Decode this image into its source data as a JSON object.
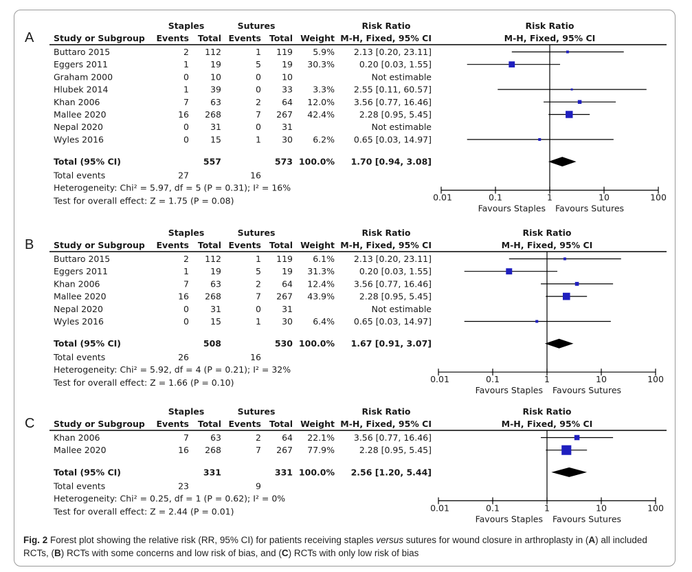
{
  "figure": {
    "caption_label": "Fig. 2",
    "caption_text_1": " Forest plot showing the relative risk (RR, 95% CI) for patients receiving staples ",
    "caption_versus": "versus",
    "caption_text_2": " sutures for wound closure in arthroplasty in (",
    "caption_a": "A",
    "caption_text_3": ") all included RCTs, (",
    "caption_b": "B",
    "caption_text_4": ") RCTs with some concerns and low risk of bias, and (",
    "caption_c": "C",
    "caption_text_5": ") RCTs with only low risk of bias"
  },
  "headers": {
    "study": "Study or Subgroup",
    "staples": "Staples",
    "sutures": "Sutures",
    "events": "Events",
    "total": "Total",
    "weight": "Weight",
    "risk_ratio": "Risk Ratio",
    "method": "M-H, Fixed, 95% CI",
    "favours_left": "Favours Staples",
    "favours_right": "Favours Sutures"
  },
  "chart_data": [
    {
      "type": "forest",
      "panel_label": "A",
      "scale": "log",
      "xticks": [
        0.01,
        0.1,
        1,
        10,
        100
      ],
      "xtick_labels": [
        "0.01",
        "0.1",
        "1",
        "10",
        "100"
      ],
      "studies": [
        {
          "name": "Buttaro 2015",
          "e1": "2",
          "n1": "112",
          "e2": "1",
          "n2": "119",
          "weight": "5.9%",
          "ci": "2.13 [0.20, 23.11]",
          "rr": 2.13,
          "lo": 0.2,
          "hi": 23.11,
          "w": 5.9
        },
        {
          "name": "Eggers 2011",
          "e1": "1",
          "n1": "19",
          "e2": "5",
          "n2": "19",
          "weight": "30.3%",
          "ci": "0.20 [0.03, 1.55]",
          "rr": 0.2,
          "lo": 0.03,
          "hi": 1.55,
          "w": 30.3
        },
        {
          "name": "Graham 2000",
          "e1": "0",
          "n1": "10",
          "e2": "0",
          "n2": "10",
          "weight": "",
          "ci": "Not estimable",
          "rr": null,
          "lo": null,
          "hi": null,
          "w": 0
        },
        {
          "name": "Hlubek 2014",
          "e1": "1",
          "n1": "39",
          "e2": "0",
          "n2": "33",
          "weight": "3.3%",
          "ci": "2.55 [0.11, 60.57]",
          "rr": 2.55,
          "lo": 0.11,
          "hi": 60.57,
          "w": 3.3
        },
        {
          "name": "Khan 2006",
          "e1": "7",
          "n1": "63",
          "e2": "2",
          "n2": "64",
          "weight": "12.0%",
          "ci": "3.56 [0.77, 16.46]",
          "rr": 3.56,
          "lo": 0.77,
          "hi": 16.46,
          "w": 12.0
        },
        {
          "name": "Mallee 2020",
          "e1": "16",
          "n1": "268",
          "e2": "7",
          "n2": "267",
          "weight": "42.4%",
          "ci": "2.28 [0.95, 5.45]",
          "rr": 2.28,
          "lo": 0.95,
          "hi": 5.45,
          "w": 42.4
        },
        {
          "name": "Nepal 2020",
          "e1": "0",
          "n1": "31",
          "e2": "0",
          "n2": "31",
          "weight": "",
          "ci": "Not estimable",
          "rr": null,
          "lo": null,
          "hi": null,
          "w": 0
        },
        {
          "name": "Wyles 2016",
          "e1": "0",
          "n1": "15",
          "e2": "1",
          "n2": "30",
          "weight": "6.2%",
          "ci": "0.65 [0.03, 14.97]",
          "rr": 0.65,
          "lo": 0.03,
          "hi": 14.97,
          "w": 6.2
        }
      ],
      "total": {
        "label": "Total (95% CI)",
        "n1": "557",
        "n2": "573",
        "weight": "100.0%",
        "ci": "1.70 [0.94, 3.08]",
        "rr": 1.7,
        "lo": 0.94,
        "hi": 3.08
      },
      "total_events": {
        "label": "Total events",
        "e1": "27",
        "e2": "16"
      },
      "heterogeneity": "Heterogeneity: Chi² = 5.97, df = 5 (P = 0.31); I² = 16%",
      "overall_effect": "Test for overall effect: Z = 1.75 (P = 0.08)"
    },
    {
      "type": "forest",
      "panel_label": "B",
      "scale": "log",
      "xticks": [
        0.01,
        0.1,
        1,
        10,
        100
      ],
      "xtick_labels": [
        "0.01",
        "0.1",
        "1",
        "10",
        "100"
      ],
      "studies": [
        {
          "name": "Buttaro 2015",
          "e1": "2",
          "n1": "112",
          "e2": "1",
          "n2": "119",
          "weight": "6.1%",
          "ci": "2.13 [0.20, 23.11]",
          "rr": 2.13,
          "lo": 0.2,
          "hi": 23.11,
          "w": 6.1
        },
        {
          "name": "Eggers 2011",
          "e1": "1",
          "n1": "19",
          "e2": "5",
          "n2": "19",
          "weight": "31.3%",
          "ci": "0.20 [0.03, 1.55]",
          "rr": 0.2,
          "lo": 0.03,
          "hi": 1.55,
          "w": 31.3
        },
        {
          "name": "Khan 2006",
          "e1": "7",
          "n1": "63",
          "e2": "2",
          "n2": "64",
          "weight": "12.4%",
          "ci": "3.56 [0.77, 16.46]",
          "rr": 3.56,
          "lo": 0.77,
          "hi": 16.46,
          "w": 12.4
        },
        {
          "name": "Mallee 2020",
          "e1": "16",
          "n1": "268",
          "e2": "7",
          "n2": "267",
          "weight": "43.9%",
          "ci": "2.28 [0.95, 5.45]",
          "rr": 2.28,
          "lo": 0.95,
          "hi": 5.45,
          "w": 43.9
        },
        {
          "name": "Nepal 2020",
          "e1": "0",
          "n1": "31",
          "e2": "0",
          "n2": "31",
          "weight": "",
          "ci": "Not estimable",
          "rr": null,
          "lo": null,
          "hi": null,
          "w": 0
        },
        {
          "name": "Wyles 2016",
          "e1": "0",
          "n1": "15",
          "e2": "1",
          "n2": "30",
          "weight": "6.4%",
          "ci": "0.65 [0.03, 14.97]",
          "rr": 0.65,
          "lo": 0.03,
          "hi": 14.97,
          "w": 6.4
        }
      ],
      "total": {
        "label": "Total (95% CI)",
        "n1": "508",
        "n2": "530",
        "weight": "100.0%",
        "ci": "1.67 [0.91, 3.07]",
        "rr": 1.67,
        "lo": 0.91,
        "hi": 3.07
      },
      "total_events": {
        "label": "Total events",
        "e1": "26",
        "e2": "16"
      },
      "heterogeneity": "Heterogeneity: Chi² = 5.92, df = 4 (P = 0.21); I² = 32%",
      "overall_effect": "Test for overall effect: Z = 1.66 (P = 0.10)"
    },
    {
      "type": "forest",
      "panel_label": "C",
      "scale": "log",
      "xticks": [
        0.01,
        0.1,
        1,
        10,
        100
      ],
      "xtick_labels": [
        "0.01",
        "0.1",
        "1",
        "10",
        "100"
      ],
      "studies": [
        {
          "name": "Khan 2006",
          "e1": "7",
          "n1": "63",
          "e2": "2",
          "n2": "64",
          "weight": "22.1%",
          "ci": "3.56 [0.77, 16.46]",
          "rr": 3.56,
          "lo": 0.77,
          "hi": 16.46,
          "w": 22.1
        },
        {
          "name": "Mallee 2020",
          "e1": "16",
          "n1": "268",
          "e2": "7",
          "n2": "267",
          "weight": "77.9%",
          "ci": "2.28 [0.95, 5.45]",
          "rr": 2.28,
          "lo": 0.95,
          "hi": 5.45,
          "w": 77.9
        }
      ],
      "total": {
        "label": "Total (95% CI)",
        "n1": "331",
        "n2": "331",
        "weight": "100.0%",
        "ci": "2.56 [1.20, 5.44]",
        "rr": 2.56,
        "lo": 1.2,
        "hi": 5.44
      },
      "total_events": {
        "label": "Total events",
        "e1": "23",
        "e2": "9"
      },
      "heterogeneity": "Heterogeneity: Chi² = 0.25, df = 1 (P = 0.62); I² = 0%",
      "overall_effect": "Test for overall effect: Z = 2.44 (P = 0.01)"
    }
  ],
  "colors": {
    "marker": "#1f1fbf",
    "diamond": "#000000",
    "line": "#000000"
  }
}
